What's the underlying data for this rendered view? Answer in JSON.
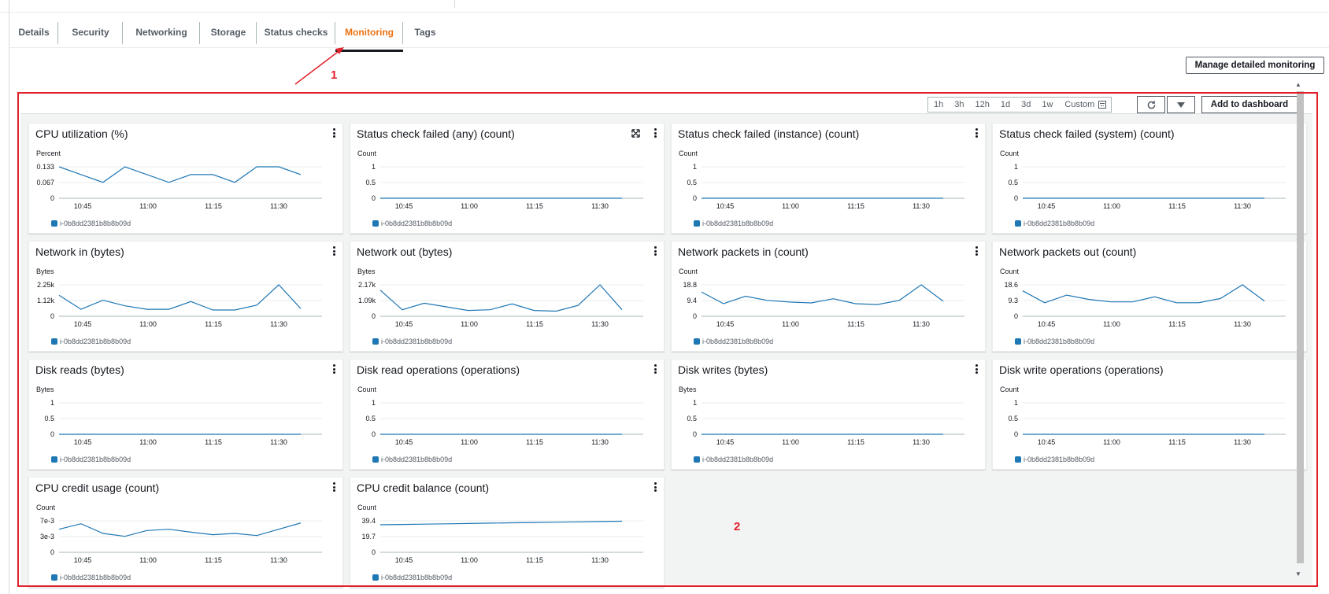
{
  "tabs": [
    {
      "label": "Details",
      "active": false
    },
    {
      "label": "Security",
      "active": false
    },
    {
      "label": "Networking",
      "active": false
    },
    {
      "label": "Storage",
      "active": false
    },
    {
      "label": "Status checks",
      "active": false
    },
    {
      "label": "Monitoring",
      "active": true
    },
    {
      "label": "Tags",
      "active": false
    }
  ],
  "manage_button": "Manage detailed monitoring",
  "annotations": {
    "arrow_label": "1",
    "box_label": "2"
  },
  "toolbar": {
    "ranges": [
      "1h",
      "3h",
      "12h",
      "1d",
      "3d",
      "1w"
    ],
    "custom_label": "Custom",
    "add_to_dashboard": "Add to dashboard",
    "icons": {
      "refresh": "refresh-icon",
      "dropdown": "caret-down-icon",
      "calendar": "calendar-icon"
    }
  },
  "colors": {
    "series": "#1f77b4",
    "accent": "#ec7211",
    "annotation": "#e0202a"
  },
  "legend_label": "i-0b8dd2381b8b8b09d",
  "x_ticks": [
    "10:45",
    "11:00",
    "11:15",
    "11:30"
  ],
  "chart_data": [
    {
      "type": "line",
      "title": "CPU utilization (%)",
      "ylabel": "Percent",
      "yticks": [
        "0.133",
        "0.067",
        "0"
      ],
      "ylim": [
        0,
        0.133
      ],
      "series": [
        {
          "name": "i-0b8dd2381b8b8b09d",
          "values": [
            0.133,
            0.1,
            0.067,
            0.133,
            0.1,
            0.067,
            0.1,
            0.1,
            0.067,
            0.133,
            0.133,
            0.1
          ]
        }
      ]
    },
    {
      "type": "line",
      "title": "Status check failed (any) (count)",
      "ylabel": "Count",
      "yticks": [
        "1",
        "0.5",
        "0"
      ],
      "ylim": [
        0,
        1
      ],
      "expandable": true,
      "series": [
        {
          "name": "i-0b8dd2381b8b8b09d",
          "values": [
            0,
            0,
            0,
            0,
            0,
            0,
            0,
            0,
            0,
            0,
            0,
            0
          ]
        }
      ]
    },
    {
      "type": "line",
      "title": "Status check failed (instance) (count)",
      "ylabel": "Count",
      "yticks": [
        "1",
        "0.5",
        "0"
      ],
      "ylim": [
        0,
        1
      ],
      "series": [
        {
          "name": "i-0b8dd2381b8b8b09d",
          "values": [
            0,
            0,
            0,
            0,
            0,
            0,
            0,
            0,
            0,
            0,
            0,
            0
          ]
        }
      ]
    },
    {
      "type": "line",
      "title": "Status check failed (system) (count)",
      "ylabel": "Count",
      "yticks": [
        "1",
        "0.5",
        "0"
      ],
      "ylim": [
        0,
        1
      ],
      "series": [
        {
          "name": "i-0b8dd2381b8b8b09d",
          "values": [
            0,
            0,
            0,
            0,
            0,
            0,
            0,
            0,
            0,
            0,
            0,
            0
          ]
        }
      ]
    },
    {
      "type": "line",
      "title": "Network in (bytes)",
      "ylabel": "Bytes",
      "yticks": [
        "2.25k",
        "1.12k",
        "0"
      ],
      "ylim": [
        0,
        2250
      ],
      "series": [
        {
          "name": "i-0b8dd2381b8b8b09d",
          "values": [
            1500,
            500,
            1150,
            750,
            500,
            500,
            1050,
            450,
            450,
            800,
            2250,
            550
          ]
        }
      ]
    },
    {
      "type": "line",
      "title": "Network out (bytes)",
      "ylabel": "Bytes",
      "yticks": [
        "2.17k",
        "1.09k",
        "0"
      ],
      "ylim": [
        0,
        2170
      ],
      "series": [
        {
          "name": "i-0b8dd2381b8b8b09d",
          "values": [
            1800,
            450,
            900,
            650,
            400,
            450,
            850,
            400,
            350,
            750,
            2170,
            450
          ]
        }
      ]
    },
    {
      "type": "line",
      "title": "Network packets in (count)",
      "ylabel": "Count",
      "yticks": [
        "18.8",
        "9.4",
        "0"
      ],
      "ylim": [
        0,
        18.8
      ],
      "series": [
        {
          "name": "i-0b8dd2381b8b8b09d",
          "values": [
            14.5,
            7.5,
            12,
            9.5,
            8.5,
            8,
            10.5,
            7.5,
            7,
            9.5,
            18.8,
            9
          ]
        }
      ]
    },
    {
      "type": "line",
      "title": "Network packets out (count)",
      "ylabel": "Count",
      "yticks": [
        "18.6",
        "9.3",
        "0"
      ],
      "ylim": [
        0,
        18.6
      ],
      "series": [
        {
          "name": "i-0b8dd2381b8b8b09d",
          "values": [
            15,
            8,
            12.5,
            10,
            8.5,
            8.5,
            11.5,
            8,
            8,
            10.5,
            18.6,
            9
          ]
        }
      ]
    },
    {
      "type": "line",
      "title": "Disk reads (bytes)",
      "ylabel": "Bytes",
      "yticks": [
        "1",
        "0.5",
        "0"
      ],
      "ylim": [
        0,
        1
      ],
      "series": [
        {
          "name": "i-0b8dd2381b8b8b09d",
          "values": [
            0,
            0,
            0,
            0,
            0,
            0,
            0,
            0,
            0,
            0,
            0,
            0
          ]
        }
      ]
    },
    {
      "type": "line",
      "title": "Disk read operations (operations)",
      "ylabel": "Count",
      "yticks": [
        "1",
        "0.5",
        "0"
      ],
      "ylim": [
        0,
        1
      ],
      "series": [
        {
          "name": "i-0b8dd2381b8b8b09d",
          "values": [
            0,
            0,
            0,
            0,
            0,
            0,
            0,
            0,
            0,
            0,
            0,
            0
          ]
        }
      ]
    },
    {
      "type": "line",
      "title": "Disk writes (bytes)",
      "ylabel": "Bytes",
      "yticks": [
        "1",
        "0.5",
        "0"
      ],
      "ylim": [
        0,
        1
      ],
      "series": [
        {
          "name": "i-0b8dd2381b8b8b09d",
          "values": [
            0,
            0,
            0,
            0,
            0,
            0,
            0,
            0,
            0,
            0,
            0,
            0
          ]
        }
      ]
    },
    {
      "type": "line",
      "title": "Disk write operations (operations)",
      "ylabel": "Count",
      "yticks": [
        "1",
        "0.5",
        "0"
      ],
      "ylim": [
        0,
        1
      ],
      "series": [
        {
          "name": "i-0b8dd2381b8b8b09d",
          "values": [
            0,
            0,
            0,
            0,
            0,
            0,
            0,
            0,
            0,
            0,
            0,
            0
          ]
        }
      ]
    },
    {
      "type": "line",
      "title": "CPU credit usage (count)",
      "ylabel": "Count",
      "yticks": [
        "7e-3",
        "3e-3",
        "0"
      ],
      "ylim": [
        0,
        0.0075
      ],
      "series": [
        {
          "name": "i-0b8dd2381b8b8b09d",
          "values": [
            0.0055,
            0.0068,
            0.0045,
            0.0038,
            0.0052,
            0.0055,
            0.0048,
            0.0042,
            0.0045,
            0.004,
            0.0055,
            0.007
          ]
        }
      ]
    },
    {
      "type": "line",
      "title": "CPU credit balance (count)",
      "ylabel": "Count",
      "yticks": [
        "39.4",
        "19.7",
        "0"
      ],
      "ylim": [
        0,
        39.4
      ],
      "series": [
        {
          "name": "i-0b8dd2381b8b8b09d",
          "values": [
            34.5,
            34.9,
            35.3,
            35.7,
            36.1,
            36.5,
            36.9,
            37.3,
            37.7,
            38.1,
            38.5,
            38.9
          ]
        }
      ]
    }
  ]
}
